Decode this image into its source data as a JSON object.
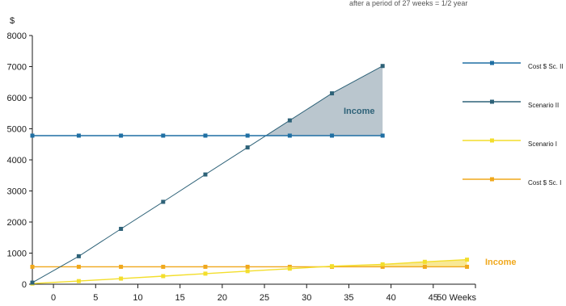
{
  "chart_data": {
    "type": "line",
    "caption": "after a period of 27 weeks = 1/2 year",
    "ylabel": "$",
    "xlabel_suffix": "Weeks",
    "ylim": [
      0,
      8000
    ],
    "xlim": [
      -2.5,
      50
    ],
    "y_ticks": [
      0,
      1000,
      2000,
      3000,
      4000,
      5000,
      6000,
      7000,
      8000
    ],
    "x_ticks": [
      0,
      5,
      10,
      15,
      20,
      25,
      30,
      35,
      40,
      45,
      50
    ],
    "x_tick_labels": [
      "0",
      "5",
      "10",
      "15",
      "20",
      "25",
      "30",
      "35",
      "40",
      "45",
      "50 Weeks"
    ],
    "grid": false,
    "legend_position": "right",
    "series": [
      {
        "name": "Cost $ Sc. II",
        "color": "#1f6fa3",
        "marker": "square",
        "x": [
          -2.5,
          3,
          8,
          13,
          18,
          23,
          28,
          33,
          39
        ],
        "values": [
          4780,
          4780,
          4780,
          4780,
          4780,
          4780,
          4780,
          4780,
          4780
        ]
      },
      {
        "name": "Scenario II",
        "color": "#2e6278",
        "marker": "square",
        "x": [
          -2.5,
          3,
          8,
          13,
          18,
          23,
          28,
          33,
          39
        ],
        "values": [
          50,
          900,
          1780,
          2650,
          3530,
          4400,
          5270,
          6140,
          7020
        ]
      },
      {
        "name": "Scenario I",
        "color": "#f3de2c",
        "marker": "square",
        "x": [
          -2.5,
          3,
          8,
          13,
          18,
          23,
          28,
          33,
          39,
          44,
          49
        ],
        "values": [
          20,
          100,
          180,
          260,
          340,
          420,
          500,
          580,
          640,
          720,
          790
        ]
      },
      {
        "name": "Cost $ Sc. I",
        "color": "#f0a81c",
        "marker": "square",
        "x": [
          -2.5,
          3,
          8,
          13,
          18,
          23,
          28,
          33,
          39,
          44,
          49
        ],
        "values": [
          560,
          560,
          560,
          560,
          560,
          560,
          560,
          560,
          560,
          560,
          560
        ]
      }
    ],
    "annotations": [
      {
        "text": "Income",
        "color": "#2e6278",
        "near_series": "Scenario II"
      },
      {
        "text": "Income",
        "color": "#f0a81c",
        "near_series": "Scenario I"
      }
    ]
  }
}
